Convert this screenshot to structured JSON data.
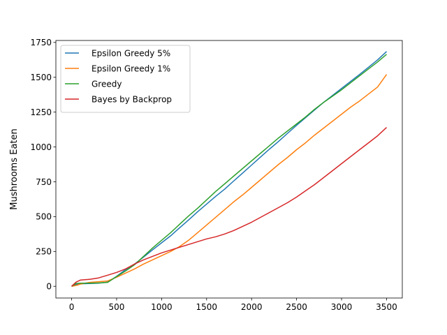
{
  "chart_data": {
    "type": "line",
    "title": "",
    "xlabel": "",
    "ylabel": "Mushrooms Eaten",
    "xlim": [
      -175,
      3675
    ],
    "ylim": [
      -84,
      1764
    ],
    "x_ticks": [
      0,
      500,
      1000,
      1500,
      2000,
      2500,
      3000,
      3500
    ],
    "x_tick_labels": [
      "0",
      "500",
      "1000",
      "1500",
      "2000",
      "2500",
      "3000",
      "3500"
    ],
    "y_ticks": [
      0,
      250,
      500,
      750,
      1000,
      1250,
      1500,
      1750
    ],
    "y_tick_labels": [
      "0",
      "250",
      "500",
      "750",
      "1000",
      "1250",
      "1500",
      "1750"
    ],
    "grid": false,
    "legend_position": "top-left",
    "series": [
      {
        "name": "Epsilon Greedy 5%",
        "color": "#1f77b4",
        "points": [
          [
            0,
            0
          ],
          [
            50,
            14
          ],
          [
            100,
            18
          ],
          [
            200,
            20
          ],
          [
            300,
            22
          ],
          [
            400,
            30
          ],
          [
            500,
            72
          ],
          [
            600,
            120
          ],
          [
            700,
            160
          ],
          [
            800,
            210
          ],
          [
            900,
            262
          ],
          [
            1000,
            312
          ],
          [
            1100,
            362
          ],
          [
            1200,
            420
          ],
          [
            1300,
            476
          ],
          [
            1400,
            535
          ],
          [
            1500,
            590
          ],
          [
            1600,
            645
          ],
          [
            1700,
            697
          ],
          [
            1800,
            755
          ],
          [
            1900,
            812
          ],
          [
            2000,
            870
          ],
          [
            2100,
            928
          ],
          [
            2200,
            985
          ],
          [
            2300,
            1040
          ],
          [
            2400,
            1098
          ],
          [
            2500,
            1155
          ],
          [
            2600,
            1210
          ],
          [
            2700,
            1265
          ],
          [
            2800,
            1320
          ],
          [
            2900,
            1370
          ],
          [
            3000,
            1420
          ],
          [
            3100,
            1470
          ],
          [
            3200,
            1520
          ],
          [
            3300,
            1572
          ],
          [
            3400,
            1625
          ],
          [
            3500,
            1685
          ]
        ]
      },
      {
        "name": "Epsilon Greedy 1%",
        "color": "#ff7f0e",
        "points": [
          [
            0,
            0
          ],
          [
            50,
            6
          ],
          [
            100,
            16
          ],
          [
            200,
            28
          ],
          [
            300,
            33
          ],
          [
            400,
            38
          ],
          [
            500,
            65
          ],
          [
            600,
            95
          ],
          [
            700,
            125
          ],
          [
            800,
            160
          ],
          [
            900,
            190
          ],
          [
            1000,
            220
          ],
          [
            1100,
            250
          ],
          [
            1200,
            285
          ],
          [
            1300,
            330
          ],
          [
            1400,
            385
          ],
          [
            1500,
            440
          ],
          [
            1600,
            495
          ],
          [
            1700,
            550
          ],
          [
            1800,
            605
          ],
          [
            1900,
            655
          ],
          [
            2000,
            710
          ],
          [
            2100,
            765
          ],
          [
            2200,
            820
          ],
          [
            2300,
            875
          ],
          [
            2400,
            925
          ],
          [
            2500,
            980
          ],
          [
            2600,
            1030
          ],
          [
            2700,
            1085
          ],
          [
            2800,
            1135
          ],
          [
            2900,
            1185
          ],
          [
            3000,
            1235
          ],
          [
            3100,
            1285
          ],
          [
            3200,
            1330
          ],
          [
            3300,
            1380
          ],
          [
            3400,
            1430
          ],
          [
            3500,
            1520
          ]
        ]
      },
      {
        "name": "Greedy",
        "color": "#2ca02c",
        "points": [
          [
            0,
            0
          ],
          [
            50,
            20
          ],
          [
            100,
            22
          ],
          [
            200,
            22
          ],
          [
            300,
            24
          ],
          [
            400,
            28
          ],
          [
            500,
            70
          ],
          [
            600,
            110
          ],
          [
            700,
            155
          ],
          [
            800,
            215
          ],
          [
            900,
            275
          ],
          [
            1000,
            330
          ],
          [
            1100,
            385
          ],
          [
            1200,
            445
          ],
          [
            1300,
            505
          ],
          [
            1400,
            560
          ],
          [
            1500,
            620
          ],
          [
            1600,
            680
          ],
          [
            1700,
            735
          ],
          [
            1800,
            790
          ],
          [
            1900,
            845
          ],
          [
            2000,
            900
          ],
          [
            2100,
            955
          ],
          [
            2200,
            1010
          ],
          [
            2300,
            1065
          ],
          [
            2400,
            1115
          ],
          [
            2500,
            1165
          ],
          [
            2600,
            1215
          ],
          [
            2700,
            1270
          ],
          [
            2800,
            1320
          ],
          [
            2900,
            1365
          ],
          [
            3000,
            1410
          ],
          [
            3100,
            1460
          ],
          [
            3200,
            1510
          ],
          [
            3300,
            1560
          ],
          [
            3400,
            1610
          ],
          [
            3500,
            1665
          ]
        ]
      },
      {
        "name": "Bayes by Backprop",
        "color": "#d62728",
        "points": [
          [
            0,
            0
          ],
          [
            50,
            30
          ],
          [
            100,
            45
          ],
          [
            200,
            50
          ],
          [
            300,
            60
          ],
          [
            400,
            80
          ],
          [
            500,
            100
          ],
          [
            600,
            125
          ],
          [
            700,
            160
          ],
          [
            800,
            190
          ],
          [
            900,
            215
          ],
          [
            1000,
            240
          ],
          [
            1100,
            260
          ],
          [
            1200,
            280
          ],
          [
            1300,
            300
          ],
          [
            1400,
            320
          ],
          [
            1500,
            340
          ],
          [
            1600,
            355
          ],
          [
            1700,
            375
          ],
          [
            1800,
            400
          ],
          [
            1900,
            430
          ],
          [
            2000,
            460
          ],
          [
            2100,
            495
          ],
          [
            2200,
            530
          ],
          [
            2300,
            565
          ],
          [
            2400,
            600
          ],
          [
            2500,
            640
          ],
          [
            2600,
            685
          ],
          [
            2700,
            730
          ],
          [
            2800,
            780
          ],
          [
            2900,
            830
          ],
          [
            3000,
            880
          ],
          [
            3100,
            930
          ],
          [
            3200,
            980
          ],
          [
            3300,
            1030
          ],
          [
            3400,
            1080
          ],
          [
            3500,
            1140
          ]
        ]
      }
    ]
  }
}
